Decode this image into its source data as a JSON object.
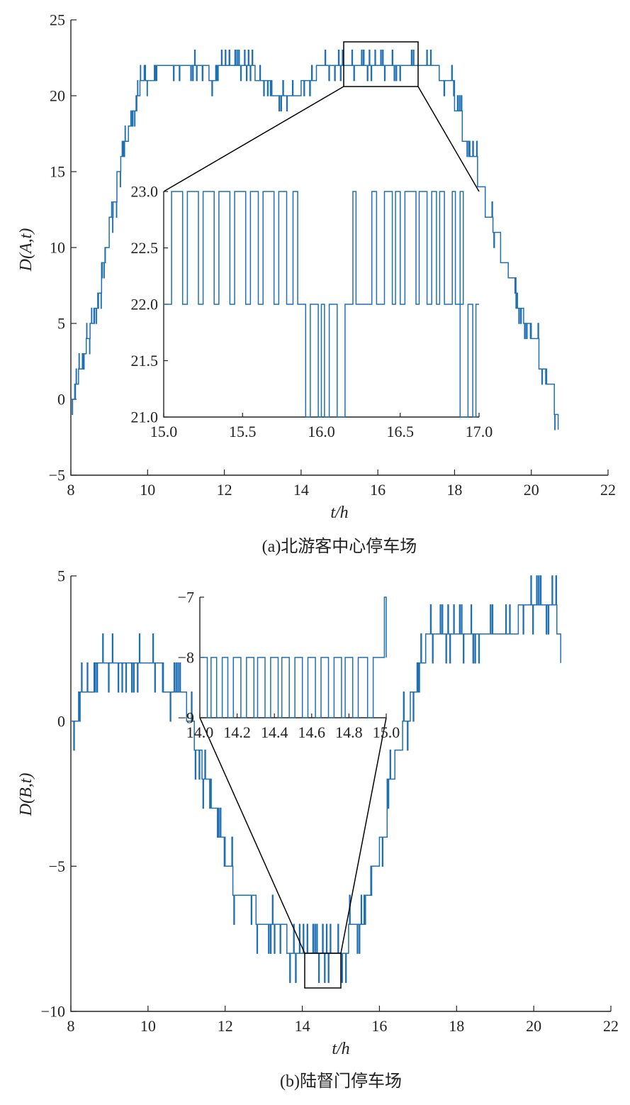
{
  "chart_data": [
    {
      "type": "line",
      "id": "a",
      "caption": "(a)北游客中心停车场",
      "xlabel": "t/h",
      "ylabel": "D(A,t)",
      "xlim": [
        8,
        22
      ],
      "ylim": [
        -5,
        25
      ],
      "xticks": [
        "8",
        "10",
        "12",
        "14",
        "16",
        "18",
        "20",
        "22"
      ],
      "yticks": [
        "−5",
        "0",
        "5",
        "10",
        "15",
        "20",
        "25"
      ],
      "series": [
        {
          "color": "#1f6fb4",
          "x": [
            8.0,
            8.1,
            8.2,
            8.3,
            8.4,
            8.5,
            8.6,
            8.7,
            8.8,
            8.9,
            9.0,
            9.1,
            9.2,
            9.3,
            9.4,
            9.5,
            9.6,
            9.7,
            9.8,
            9.9,
            10.0,
            10.2,
            10.4,
            10.6,
            10.8,
            11.0,
            11.2,
            11.4,
            11.6,
            11.8,
            12.0,
            12.2,
            12.4,
            12.6,
            12.8,
            13.0,
            13.2,
            13.4,
            13.6,
            13.8,
            14.0,
            14.2,
            14.4,
            14.6,
            14.8,
            15.0,
            15.2,
            15.4,
            15.6,
            15.8,
            16.0,
            16.2,
            16.4,
            16.6,
            16.8,
            17.0,
            17.2,
            17.4,
            17.6,
            17.8,
            18.0,
            18.2,
            18.4,
            18.6,
            18.8,
            19.0,
            19.2,
            19.4,
            19.6,
            19.8,
            20.0,
            20.2,
            20.4,
            20.6,
            20.7
          ],
          "y": [
            0,
            1,
            2,
            3,
            4,
            5,
            6,
            7,
            9,
            10,
            12,
            13,
            15,
            16,
            17,
            18,
            19,
            20,
            21,
            21,
            21,
            22,
            22,
            22,
            22,
            22,
            22,
            22,
            21,
            22,
            22,
            22,
            22,
            22,
            21,
            21,
            20,
            20,
            20,
            20,
            21,
            21,
            22,
            22,
            22,
            22,
            22,
            22,
            22,
            22,
            22,
            22,
            22,
            22,
            22,
            22,
            22,
            22,
            21,
            21,
            19,
            17,
            16,
            14,
            12,
            11,
            9,
            8,
            6,
            5,
            4,
            2,
            1,
            -1,
            -2
          ]
        }
      ],
      "inset": {
        "xlim": [
          15.0,
          17.0
        ],
        "ylim": [
          21.0,
          23.0
        ],
        "xticks": [
          "15.0",
          "15.5",
          "16.0",
          "16.5",
          "17.0"
        ],
        "yticks": [
          "21.0",
          "21.5",
          "22.0",
          "22.5",
          "23.0"
        ],
        "base_level": 22,
        "up_level": 23,
        "down_level": 21,
        "up_pulses": [
          [
            15.05,
            15.12
          ],
          [
            15.15,
            15.22
          ],
          [
            15.25,
            15.32
          ],
          [
            15.35,
            15.42
          ],
          [
            15.45,
            15.52
          ],
          [
            15.55,
            15.6
          ],
          [
            15.63,
            15.7
          ],
          [
            15.73,
            15.78
          ],
          [
            15.82,
            15.85
          ],
          [
            16.2,
            16.22
          ],
          [
            16.32,
            16.35
          ],
          [
            16.4,
            16.45
          ],
          [
            16.47,
            16.5
          ],
          [
            16.53,
            16.6
          ],
          [
            16.62,
            16.67
          ],
          [
            16.7,
            16.73
          ],
          [
            16.75,
            16.78
          ],
          [
            16.83,
            16.85
          ],
          [
            16.88,
            16.9
          ]
        ],
        "down_pulses": [
          [
            15.9,
            15.93
          ],
          [
            15.98,
            16.0
          ],
          [
            16.02,
            16.05
          ],
          [
            16.1,
            16.15
          ],
          [
            16.88,
            16.93
          ],
          [
            16.96,
            16.98
          ]
        ]
      }
    },
    {
      "type": "line",
      "id": "b",
      "caption": "(b)陆督门停车场",
      "xlabel": "t/h",
      "ylabel": "D(B,t)",
      "xlim": [
        8,
        22
      ],
      "ylim": [
        -10,
        5
      ],
      "xticks": [
        "8",
        "10",
        "12",
        "14",
        "16",
        "18",
        "20",
        "22"
      ],
      "yticks": [
        "−10",
        "−5",
        "0",
        "5"
      ],
      "series": [
        {
          "color": "#1f6fb4",
          "x": [
            8.0,
            8.2,
            8.4,
            8.6,
            8.8,
            9.0,
            9.2,
            9.4,
            9.6,
            9.8,
            10.0,
            10.2,
            10.4,
            10.6,
            10.8,
            11.0,
            11.2,
            11.4,
            11.6,
            11.8,
            12.0,
            12.2,
            12.4,
            12.6,
            12.8,
            13.0,
            13.2,
            13.4,
            13.6,
            13.8,
            14.0,
            14.2,
            14.4,
            14.6,
            14.8,
            15.0,
            15.2,
            15.4,
            15.6,
            15.8,
            16.0,
            16.2,
            16.4,
            16.6,
            16.8,
            17.0,
            17.2,
            17.4,
            17.6,
            17.8,
            18.0,
            18.2,
            18.4,
            18.6,
            18.8,
            19.0,
            19.2,
            19.4,
            19.6,
            19.8,
            20.0,
            20.2,
            20.4,
            20.6,
            20.7
          ],
          "y": [
            0,
            1,
            1,
            2,
            2,
            2,
            2,
            2,
            2,
            2,
            2,
            2,
            1,
            1,
            1,
            0,
            -1,
            -2,
            -3,
            -4,
            -5,
            -6,
            -6,
            -6,
            -7,
            -7,
            -7,
            -7,
            -8,
            -8,
            -8,
            -8,
            -8,
            -8,
            -8,
            -8,
            -7,
            -7,
            -6,
            -5,
            -4,
            -2,
            -1,
            0,
            1,
            2,
            3,
            3,
            3,
            3,
            3,
            3,
            3,
            3,
            3,
            3,
            3,
            3,
            4,
            4,
            4,
            4,
            4,
            3,
            2
          ]
        }
      ],
      "inset": {
        "xlim": [
          14.0,
          15.0
        ],
        "ylim": [
          -9,
          -7
        ],
        "xticks": [
          "14.0",
          "14.2",
          "14.4",
          "14.6",
          "14.8",
          "15.0"
        ],
        "yticks": [
          "−9",
          "−8",
          "−7"
        ],
        "base_level": -8,
        "up_level": -7,
        "down_level": -9,
        "up_pulses": [
          [
            14.99,
            15.0
          ]
        ],
        "down_pulses": [
          [
            14.04,
            14.06
          ],
          [
            14.09,
            14.12
          ],
          [
            14.15,
            14.18
          ],
          [
            14.22,
            14.25
          ],
          [
            14.29,
            14.31
          ],
          [
            14.35,
            14.38
          ],
          [
            14.42,
            14.44
          ],
          [
            14.48,
            14.51
          ],
          [
            14.55,
            14.58
          ],
          [
            14.62,
            14.65
          ],
          [
            14.69,
            14.72
          ],
          [
            14.76,
            14.78
          ],
          [
            14.82,
            14.85
          ],
          [
            14.9,
            14.93
          ]
        ]
      }
    }
  ]
}
